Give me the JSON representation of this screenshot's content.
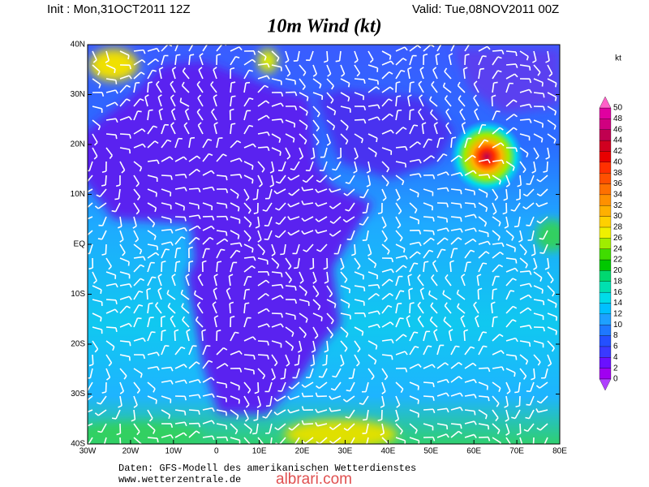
{
  "header": {
    "init": "Init : Mon,31OCT2011 12Z",
    "valid": "Valid: Tue,08NOV2011 00Z",
    "title": "10m Wind (kt)"
  },
  "map": {
    "lat_labels": [
      "40N",
      "30N",
      "20N",
      "10N",
      "EQ",
      "10S",
      "20S",
      "30S",
      "40S"
    ],
    "lon_labels": [
      "30W",
      "20W",
      "10W",
      "0",
      "10E",
      "20E",
      "30E",
      "40E",
      "50E",
      "60E",
      "70E",
      "80E"
    ]
  },
  "colorbar": {
    "unit": "kt",
    "levels": [
      0,
      2,
      4,
      6,
      8,
      10,
      12,
      14,
      16,
      18,
      20,
      22,
      24,
      26,
      28,
      30,
      32,
      34,
      36,
      38,
      40,
      42,
      44,
      46,
      48,
      50
    ],
    "colors": [
      "#a000f0",
      "#6a10ff",
      "#3a3aff",
      "#2450ff",
      "#1e78ff",
      "#1ea0ff",
      "#00c0ff",
      "#00dce8",
      "#00e0b0",
      "#00d870",
      "#00c800",
      "#40dc00",
      "#a0ec00",
      "#f0f000",
      "#ffd000",
      "#ffb000",
      "#ff9000",
      "#ff7000",
      "#ff5000",
      "#ff3000",
      "#e80000",
      "#d00020",
      "#c00050",
      "#d00080",
      "#e000a0"
    ],
    "below_color": "#b040ff",
    "above_color": "#ff60c8"
  },
  "footer": {
    "line1": "Daten: GFS-Modell des amerikanischen Wetterdienstes",
    "line2": "www.wetterzentrale.de",
    "watermark": "albrari.com"
  }
}
